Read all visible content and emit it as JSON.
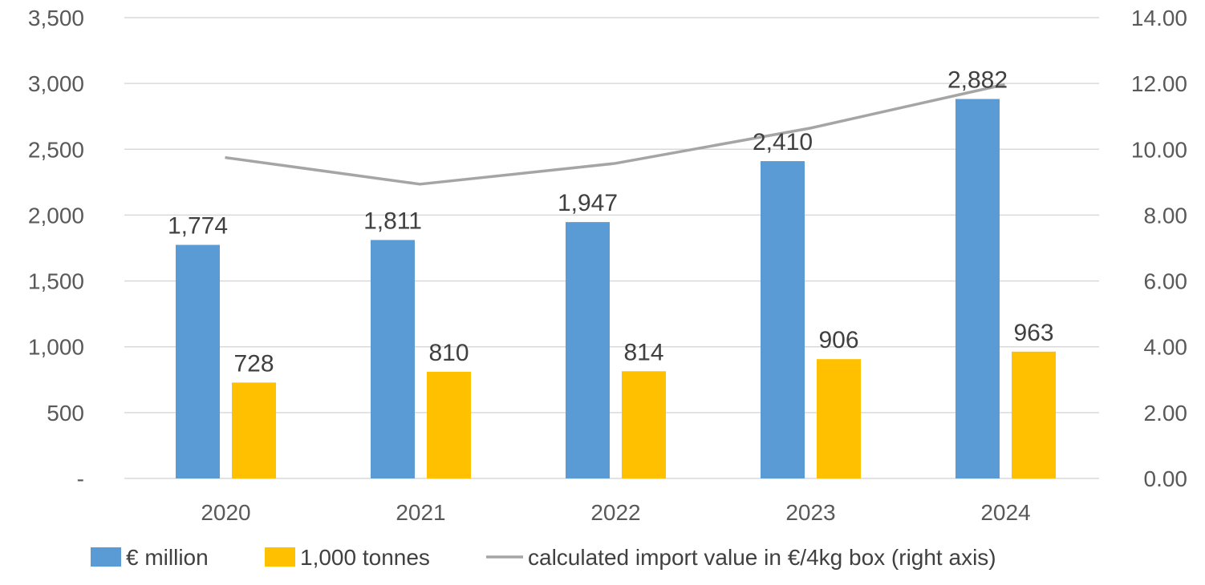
{
  "chart_data": {
    "type": "bar",
    "categories": [
      "2020",
      "2021",
      "2022",
      "2023",
      "2024"
    ],
    "series": [
      {
        "name": "€ million",
        "type": "bar",
        "axis": "left",
        "color": "#5B9BD5",
        "values": [
          1774,
          1811,
          1947,
          2410,
          2882
        ],
        "labels": [
          "1,774",
          "1,811",
          "1,947",
          "2,410",
          "2,882"
        ]
      },
      {
        "name": "1,000 tonnes",
        "type": "bar",
        "axis": "left",
        "color": "#FFC000",
        "values": [
          728,
          810,
          814,
          906,
          963
        ],
        "labels": [
          "728",
          "810",
          "814",
          "906",
          "963"
        ]
      },
      {
        "name": "calculated import value in €/4kg box (right axis)",
        "type": "line",
        "axis": "right",
        "color": "#A5A5A5",
        "values": [
          9.75,
          8.94,
          9.57,
          10.64,
          11.97
        ]
      }
    ],
    "y_left": {
      "ylim": [
        0,
        3500
      ],
      "ticks": [
        0,
        500,
        1000,
        1500,
        2000,
        2500,
        3000,
        3500
      ],
      "tick_labels": [
        "-",
        "500",
        "1,000",
        "1,500",
        "2,000",
        "2,500",
        "3,000",
        "3,500"
      ]
    },
    "y_right": {
      "ylim": [
        0,
        14
      ],
      "ticks": [
        0,
        2,
        4,
        6,
        8,
        10,
        12,
        14
      ],
      "tick_labels": [
        "0.00",
        "2.00",
        "4.00",
        "6.00",
        "8.00",
        "10.00",
        "12.00",
        "14.00"
      ]
    },
    "grid": true,
    "legend_position": "bottom",
    "gridline_color": "#D9D9D9"
  }
}
